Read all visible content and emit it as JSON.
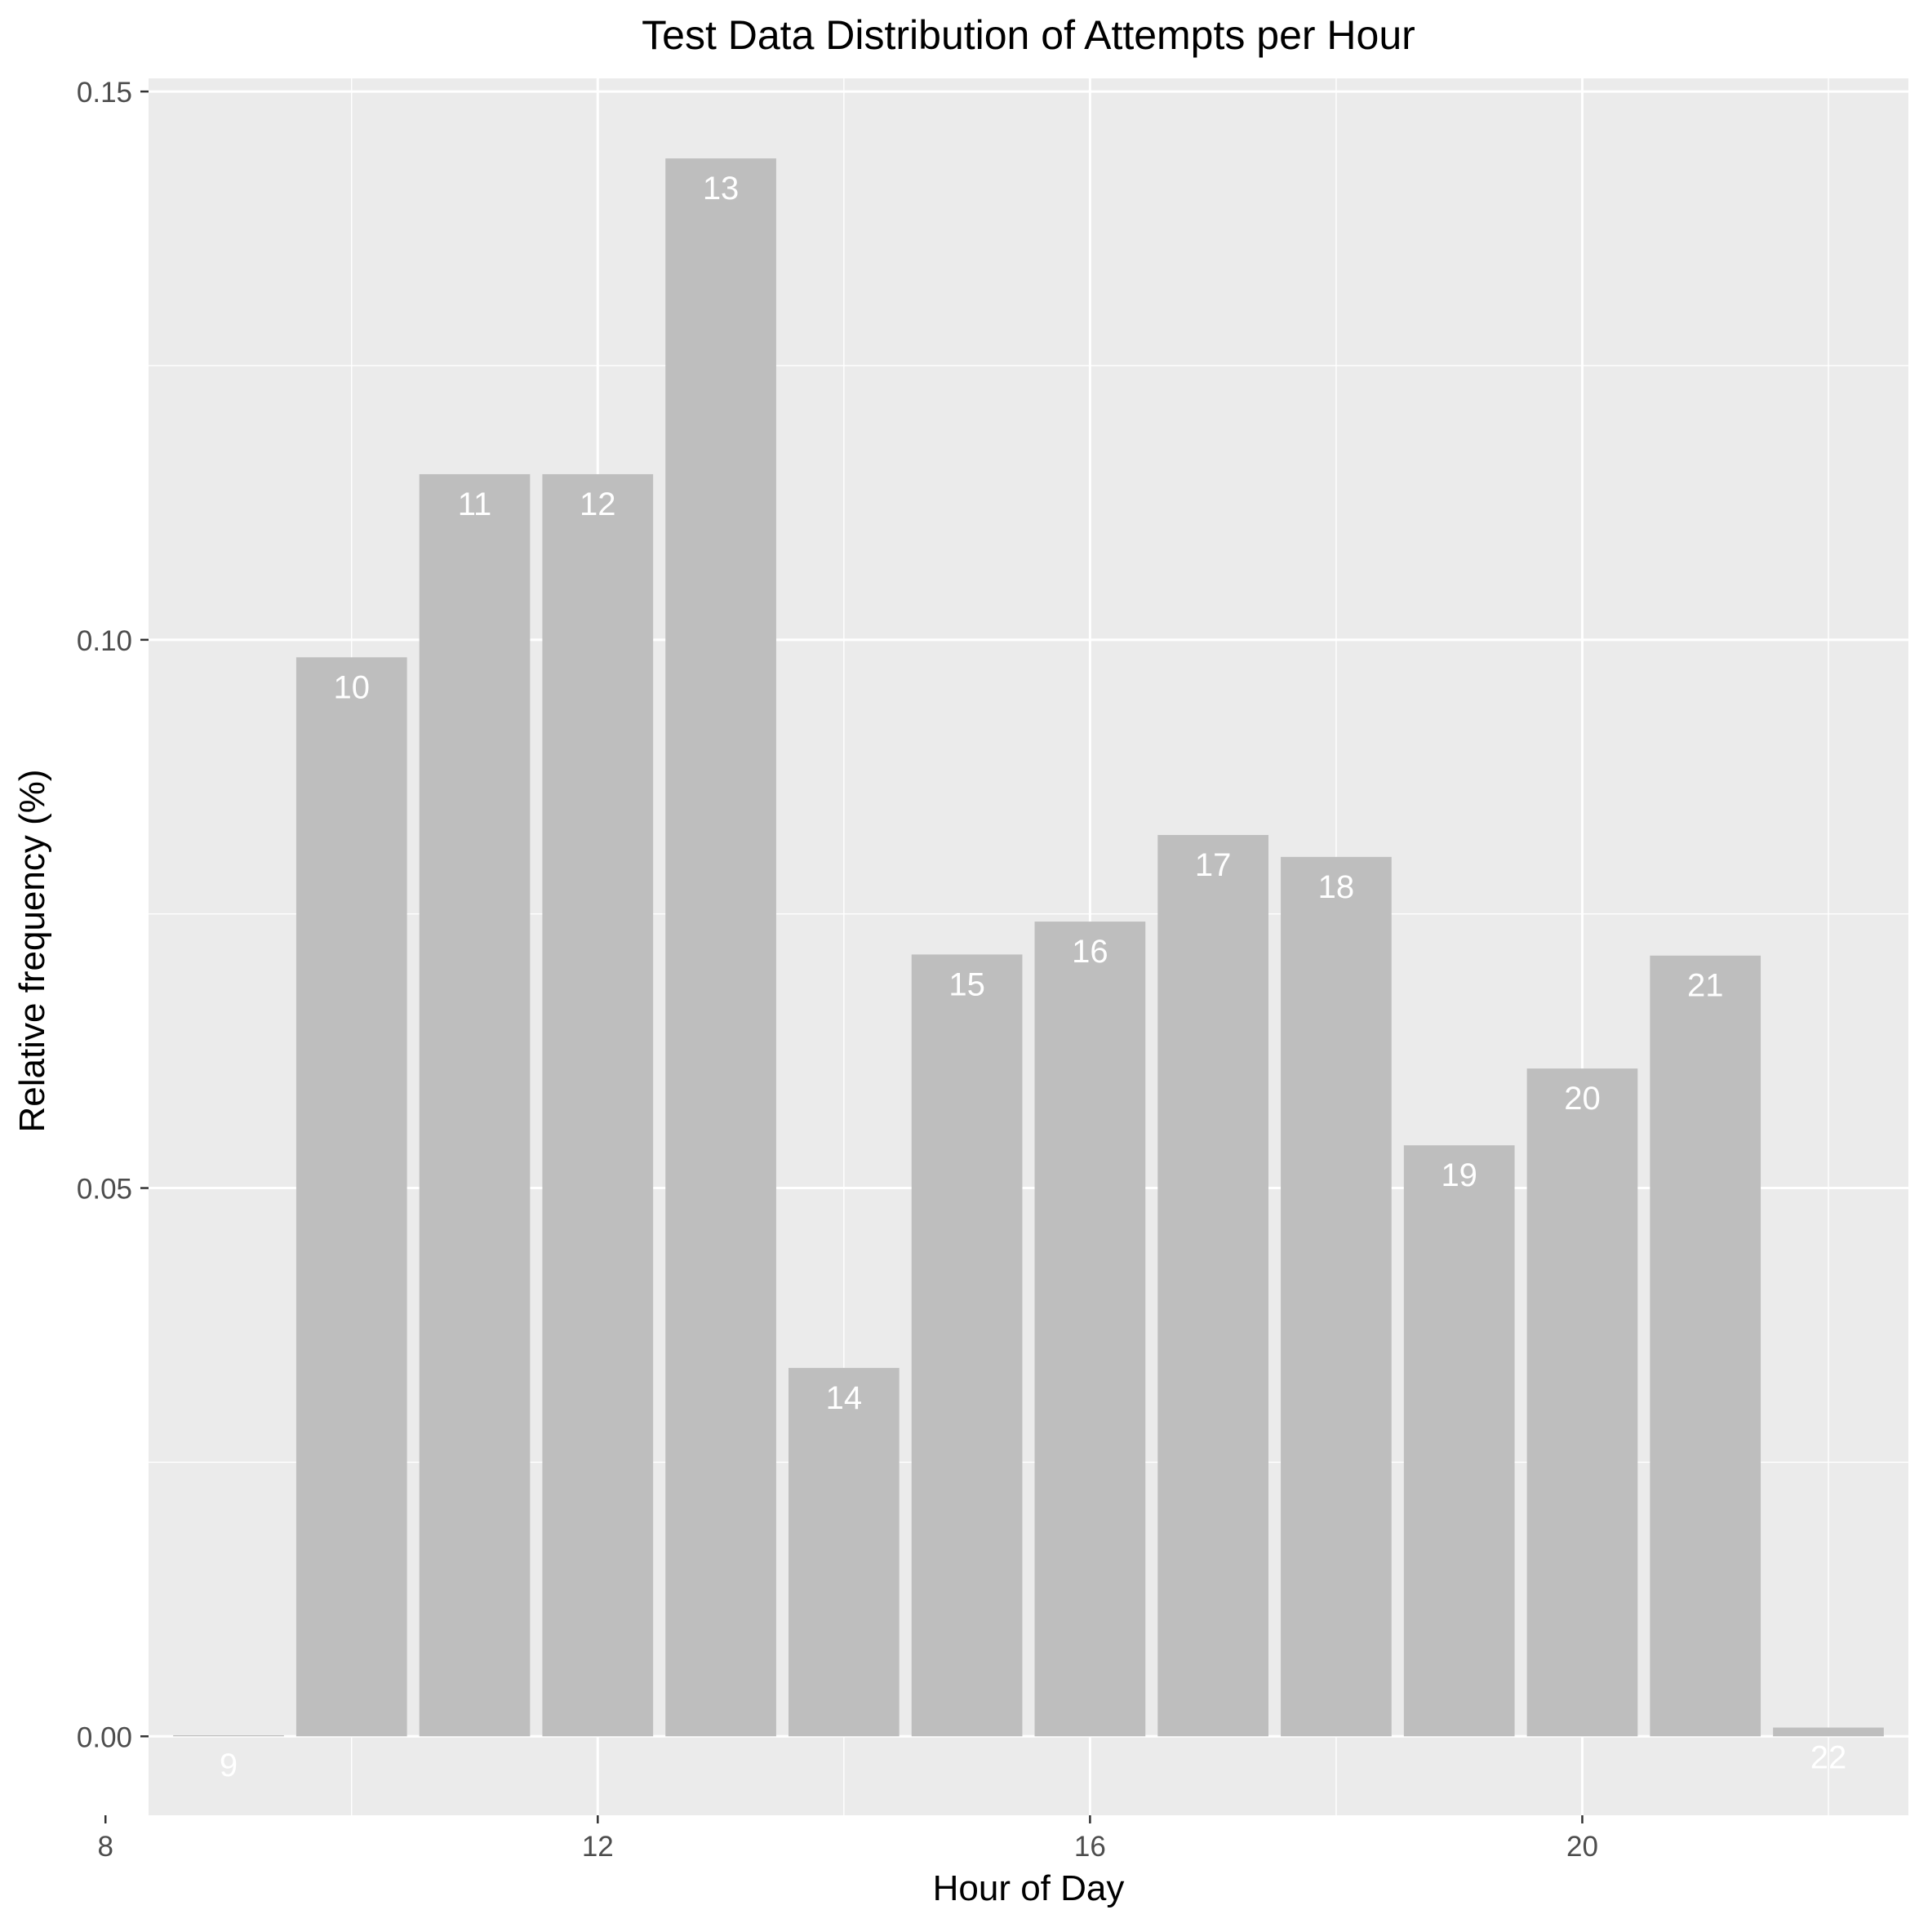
{
  "chart_data": {
    "type": "bar",
    "title": "Test Data Distribution of Attempts per Hour",
    "xlabel": "Hour of Day",
    "ylabel": "Relative frequency (%)",
    "x": [
      9,
      10,
      11,
      12,
      13,
      14,
      15,
      16,
      17,
      18,
      19,
      20,
      21,
      22
    ],
    "values": [
      0.0001,
      0.0984,
      0.1151,
      0.1151,
      0.1439,
      0.0336,
      0.0713,
      0.0743,
      0.0822,
      0.0802,
      0.0539,
      0.0609,
      0.0712,
      0.0008
    ],
    "bar_labels": [
      "9",
      "10",
      "11",
      "12",
      "13",
      "14",
      "15",
      "16",
      "17",
      "18",
      "19",
      "20",
      "21",
      "22"
    ],
    "xlim": [
      8.35,
      22.65
    ],
    "ylim": [
      -0.0072,
      0.1512
    ],
    "x_ticks": [
      8,
      12,
      16,
      20
    ],
    "x_tick_labels": [
      "8",
      "12",
      "16",
      "20"
    ],
    "y_ticks": [
      0.0,
      0.05,
      0.1,
      0.15
    ],
    "y_tick_labels": [
      "0.00",
      "0.05",
      "0.10",
      "0.15"
    ],
    "grid": true,
    "legend": "none",
    "colors": {
      "panel_background": "#EBEBEB",
      "grid": "#FFFFFF",
      "bar_fill": "#BEBEBE",
      "bar_label": "#FFFFFF",
      "axis_text": "#4D4D4D",
      "title_text": "#000000"
    }
  }
}
